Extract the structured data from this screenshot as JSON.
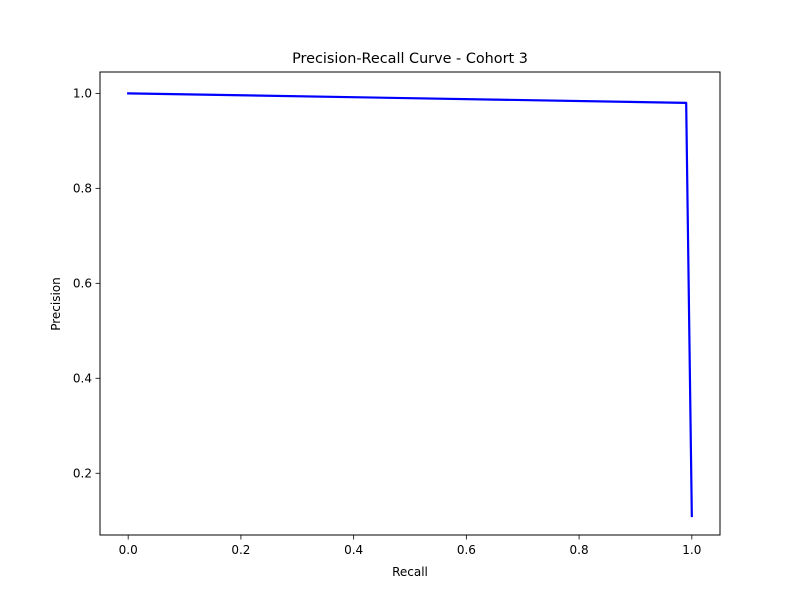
{
  "chart_data": {
    "type": "line",
    "title": "Precision-Recall Curve - Cohort 3",
    "xlabel": "Recall",
    "ylabel": "Precision",
    "xlim": [
      -0.05,
      1.05
    ],
    "ylim": [
      0.07,
      1.045
    ],
    "xticks": [
      0.0,
      0.2,
      0.4,
      0.6,
      0.8,
      1.0
    ],
    "xtick_labels": [
      "0.0",
      "0.2",
      "0.4",
      "0.6",
      "0.8",
      "1.0"
    ],
    "yticks": [
      0.2,
      0.4,
      0.6,
      0.8,
      1.0
    ],
    "ytick_labels": [
      "0.2",
      "0.4",
      "0.6",
      "0.8",
      "1.0"
    ],
    "grid": false,
    "legend": "none",
    "series": [
      {
        "color": "#0000ff",
        "x": [
          0.0,
          0.99,
          1.0
        ],
        "y": [
          1.0,
          0.98,
          0.11
        ]
      }
    ]
  }
}
